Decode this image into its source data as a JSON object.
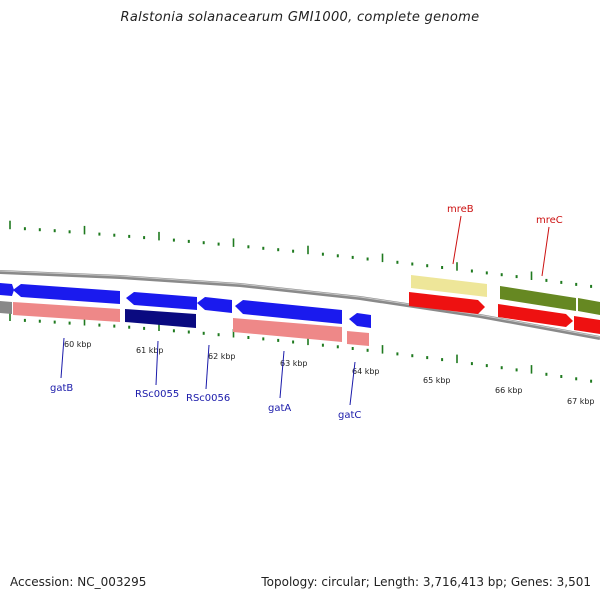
{
  "title": "Ralstonia solanacearum GMI1000, complete genome",
  "footer": {
    "accession": "Accession: NC_003295",
    "summary": "Topology: circular; Length: 3,716,413 bp; Genes: 3,501"
  },
  "colors": {
    "backbone": "#8a8a8a",
    "tick": "#1f7a1f",
    "gene_blue": "#1a1aee",
    "gene_blue_dark": "#0a0a80",
    "gene_pink": "#ee8888",
    "gene_red": "#ee1111",
    "gene_yellow": "#eee699",
    "gene_olive": "#668822",
    "label_blue": "#1a1aaa",
    "label_red": "#cc1111"
  },
  "kbp_labels": [
    "60 kbp",
    "61 kbp",
    "62 kbp",
    "63 kbp",
    "64 kbp",
    "65 kbp",
    "66 kbp",
    "67 kbp"
  ],
  "gene_labels": [
    {
      "id": "gatB",
      "text": "gatB",
      "color": "blue"
    },
    {
      "id": "rsc0055",
      "text": "RSc0055",
      "color": "blue"
    },
    {
      "id": "rsc0056",
      "text": "RSc0056",
      "color": "blue"
    },
    {
      "id": "gatA",
      "text": "gatA",
      "color": "blue"
    },
    {
      "id": "gatC",
      "text": "gatC",
      "color": "blue"
    },
    {
      "id": "mreB",
      "text": "mreB",
      "color": "red"
    },
    {
      "id": "mreC",
      "text": "mreC",
      "color": "red"
    }
  ]
}
